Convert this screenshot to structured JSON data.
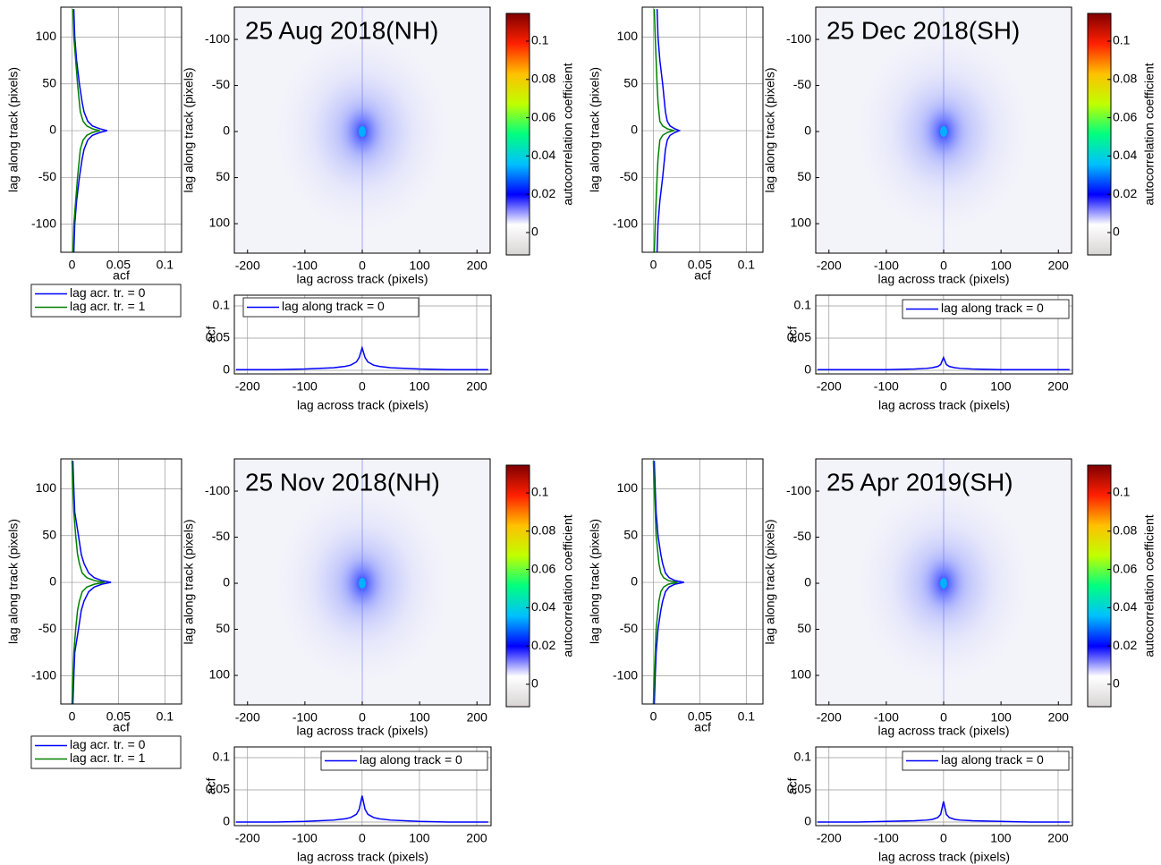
{
  "chart_data": [
    {
      "type": "line",
      "xlabel": "acf",
      "ylabel": "lag along track (pixels)",
      "xlim": [
        -0.012,
        0.118
      ],
      "xticks": [
        0,
        0.05,
        0.1
      ],
      "ylim": [
        -130,
        132
      ],
      "yticks": [
        -100,
        -50,
        0,
        50,
        100
      ],
      "grid": true,
      "legend": "below",
      "y": [
        -130,
        -100,
        -75,
        -50,
        -30,
        -20,
        -10,
        -5,
        -2,
        0,
        2,
        5,
        10,
        20,
        30,
        50,
        75,
        100,
        130
      ],
      "series": [
        {
          "name": "lag acr. tr. = 0",
          "color": "#0000ff",
          "values": [
            0.002,
            0.003,
            0.005,
            0.008,
            0.011,
            0.013,
            0.017,
            0.022,
            0.03,
            0.038,
            0.03,
            0.022,
            0.017,
            0.013,
            0.011,
            0.008,
            0.005,
            0.003,
            0.002
          ]
        },
        {
          "name": "lag acr. tr. = 1",
          "color": "#008000",
          "values": [
            0.001,
            0.002,
            0.004,
            0.006,
            0.008,
            0.009,
            0.012,
            0.016,
            0.022,
            0.03,
            0.022,
            0.016,
            0.012,
            0.009,
            0.008,
            0.006,
            0.004,
            0.002,
            0.001
          ]
        }
      ]
    },
    {
      "type": "heatmap",
      "title": "25 Aug 2018(NH)",
      "xlabel": "lag across track (pixels)",
      "ylabel": "lag along track (pixels)",
      "xlim": [
        -223,
        223
      ],
      "xticks": [
        -200,
        -100,
        0,
        100,
        200
      ],
      "ylim": [
        132,
        -135
      ],
      "yticks": [
        -100,
        -50,
        0,
        50,
        100
      ]
    },
    {
      "type": "colorbar",
      "label": "autocorrelation coefficient",
      "ylim": [
        -0.0117,
        0.1145
      ],
      "yticks": [
        0,
        0.02,
        0.04,
        0.06,
        0.08,
        0.1
      ],
      "colors": [
        "#d8d4d4",
        "#ffffff",
        "#0000ff",
        "#00c0ff",
        "#00ff80",
        "#c0ff00",
        "#ffc000",
        "#ff2000",
        "#800000"
      ]
    },
    {
      "type": "line",
      "xlabel": "lag across track (pixels)",
      "ylabel": "acf",
      "xlim": [
        -223,
        225
      ],
      "xticks": [
        -200,
        -100,
        0,
        100,
        200
      ],
      "ylim": [
        -0.0056,
        0.1167
      ],
      "yticks": [
        0,
        0.05,
        0.1
      ],
      "grid": true,
      "legend": "upper left",
      "x": [
        -220,
        -200,
        -150,
        -100,
        -50,
        -30,
        -20,
        -10,
        -5,
        0,
        5,
        10,
        20,
        30,
        50,
        100,
        150,
        200,
        220
      ],
      "series": [
        {
          "name": "lag along track = 0",
          "color": "#0000ff",
          "values": [
            0.001,
            0.001,
            0.001,
            0.002,
            0.004,
            0.006,
            0.008,
            0.013,
            0.02,
            0.035,
            0.02,
            0.013,
            0.008,
            0.006,
            0.004,
            0.002,
            0.001,
            0.001,
            0.001
          ]
        }
      ]
    },
    {
      "type": "line",
      "xlabel": "acf",
      "ylabel": "lag along track (pixels)",
      "xlim": [
        -0.012,
        0.118
      ],
      "xticks": [
        0,
        0.05,
        0.1
      ],
      "ylim": [
        -130,
        132
      ],
      "yticks": [
        -100,
        -50,
        0,
        50,
        100
      ],
      "grid": true,
      "legend": "below",
      "y": [
        -130,
        -100,
        -75,
        -50,
        -30,
        -20,
        -10,
        -5,
        -2,
        0,
        2,
        5,
        10,
        20,
        30,
        50,
        75,
        100,
        130
      ],
      "series": [
        {
          "name": "lag acr. tr. = 0",
          "color": "#0000ff",
          "values": [
            0.004,
            0.005,
            0.007,
            0.01,
            0.012,
            0.013,
            0.015,
            0.018,
            0.023,
            0.028,
            0.023,
            0.018,
            0.015,
            0.013,
            0.012,
            0.01,
            0.007,
            0.005,
            0.004
          ]
        },
        {
          "name": "lag acr. tr. = 1",
          "color": "#008000",
          "values": [
            0.001,
            0.002,
            0.003,
            0.004,
            0.005,
            0.006,
            0.007,
            0.01,
            0.015,
            0.022,
            0.015,
            0.01,
            0.007,
            0.006,
            0.005,
            0.004,
            0.003,
            0.002,
            0.001
          ]
        }
      ]
    },
    {
      "type": "heatmap",
      "title": "25 Dec 2018(SH)",
      "xlabel": "lag across track (pixels)",
      "ylabel": "lag along track (pixels)",
      "xlim": [
        -223,
        223
      ],
      "xticks": [
        -200,
        -100,
        0,
        100,
        200
      ],
      "ylim": [
        132,
        -135
      ],
      "yticks": [
        -100,
        -50,
        0,
        50,
        100
      ]
    },
    {
      "type": "colorbar",
      "label": "autocorrelation coefficient",
      "ylim": [
        -0.0117,
        0.1145
      ],
      "yticks": [
        0,
        0.02,
        0.04,
        0.06,
        0.08,
        0.1
      ],
      "colors": [
        "#d8d4d4",
        "#ffffff",
        "#0000ff",
        "#00c0ff",
        "#00ff80",
        "#c0ff00",
        "#ffc000",
        "#ff2000",
        "#800000"
      ]
    },
    {
      "type": "line",
      "xlabel": "lag across track (pixels)",
      "ylabel": "acf",
      "xlim": [
        -223,
        225
      ],
      "xticks": [
        -200,
        -100,
        0,
        100,
        200
      ],
      "ylim": [
        -0.0056,
        0.1167
      ],
      "yticks": [
        0,
        0.05,
        0.1
      ],
      "grid": true,
      "legend": "upper right",
      "x": [
        -220,
        -200,
        -150,
        -100,
        -50,
        -30,
        -20,
        -10,
        -5,
        0,
        5,
        10,
        20,
        30,
        50,
        100,
        150,
        200,
        220
      ],
      "series": [
        {
          "name": "lag along track = 0",
          "color": "#0000ff",
          "values": [
            0.001,
            0.001,
            0.001,
            0.001,
            0.002,
            0.003,
            0.004,
            0.006,
            0.009,
            0.02,
            0.009,
            0.006,
            0.004,
            0.003,
            0.002,
            0.001,
            0.001,
            0.001,
            0.001
          ]
        }
      ]
    },
    {
      "type": "line",
      "xlabel": "acf",
      "ylabel": "lag along track (pixels)",
      "xlim": [
        -0.012,
        0.118
      ],
      "xticks": [
        0,
        0.05,
        0.1
      ],
      "ylim": [
        -130,
        132
      ],
      "yticks": [
        -100,
        -50,
        0,
        50,
        100
      ],
      "grid": true,
      "legend": "below",
      "y": [
        -130,
        -100,
        -75,
        -50,
        -30,
        -20,
        -10,
        -5,
        -2,
        0,
        2,
        5,
        10,
        20,
        30,
        50,
        75,
        100,
        130
      ],
      "series": [
        {
          "name": "lag acr. tr. = 0",
          "color": "#0000ff",
          "values": [
            0.001,
            0.002,
            0.003,
            0.007,
            0.01,
            0.013,
            0.018,
            0.024,
            0.032,
            0.042,
            0.032,
            0.024,
            0.018,
            0.013,
            0.01,
            0.007,
            0.003,
            0.002,
            0.001
          ]
        },
        {
          "name": "lag acr. tr. = 1",
          "color": "#008000",
          "values": [
            0,
            0.001,
            0.002,
            0.004,
            0.006,
            0.008,
            0.011,
            0.016,
            0.024,
            0.035,
            0.024,
            0.016,
            0.011,
            0.008,
            0.006,
            0.004,
            0.002,
            0.001,
            0
          ]
        }
      ]
    },
    {
      "type": "heatmap",
      "title": "25 Nov 2018(NH)",
      "xlabel": "lag across track (pixels)",
      "ylabel": "lag along track (pixels)",
      "xlim": [
        -223,
        223
      ],
      "xticks": [
        -200,
        -100,
        0,
        100,
        200
      ],
      "ylim": [
        132,
        -135
      ],
      "yticks": [
        -100,
        -50,
        0,
        50,
        100
      ]
    },
    {
      "type": "colorbar",
      "label": "autocorrelation coefficient",
      "ylim": [
        -0.0117,
        0.1145
      ],
      "yticks": [
        0,
        0.02,
        0.04,
        0.06,
        0.08,
        0.1
      ],
      "colors": [
        "#d8d4d4",
        "#ffffff",
        "#0000ff",
        "#00c0ff",
        "#00ff80",
        "#c0ff00",
        "#ffc000",
        "#ff2000",
        "#800000"
      ]
    },
    {
      "type": "line",
      "xlabel": "lag across track (pixels)",
      "ylabel": "acf",
      "xlim": [
        -223,
        225
      ],
      "xticks": [
        -200,
        -100,
        0,
        100,
        200
      ],
      "ylim": [
        -0.0056,
        0.1167
      ],
      "yticks": [
        0,
        0.05,
        0.1
      ],
      "grid": true,
      "legend": "upper right",
      "x": [
        -220,
        -200,
        -150,
        -100,
        -50,
        -30,
        -20,
        -10,
        -5,
        0,
        5,
        10,
        20,
        30,
        50,
        100,
        150,
        200,
        220
      ],
      "series": [
        {
          "name": "lag along track = 0",
          "color": "#0000ff",
          "values": [
            0,
            0,
            0,
            0.001,
            0.003,
            0.005,
            0.007,
            0.012,
            0.02,
            0.041,
            0.02,
            0.012,
            0.007,
            0.005,
            0.003,
            0.001,
            0,
            0,
            0
          ]
        }
      ]
    },
    {
      "type": "line",
      "xlabel": "acf",
      "ylabel": "lag along track (pixels)",
      "xlim": [
        -0.012,
        0.118
      ],
      "xticks": [
        0,
        0.05,
        0.1
      ],
      "ylim": [
        -130,
        132
      ],
      "yticks": [
        -100,
        -50,
        0,
        50,
        100
      ],
      "grid": true,
      "legend": "below",
      "y": [
        -130,
        -100,
        -75,
        -50,
        -30,
        -20,
        -10,
        -5,
        -2,
        0,
        2,
        5,
        10,
        20,
        30,
        50,
        75,
        100,
        130
      ],
      "series": [
        {
          "name": "lag acr. tr. = 0",
          "color": "#0000ff",
          "values": [
            0.001,
            0.002,
            0.003,
            0.005,
            0.008,
            0.01,
            0.013,
            0.017,
            0.023,
            0.033,
            0.023,
            0.017,
            0.013,
            0.01,
            0.008,
            0.005,
            0.003,
            0.002,
            0.001
          ]
        },
        {
          "name": "lag acr. tr. = 1",
          "color": "#008000",
          "values": [
            0,
            0.001,
            0.002,
            0.003,
            0.005,
            0.006,
            0.008,
            0.011,
            0.016,
            0.026,
            0.016,
            0.011,
            0.008,
            0.006,
            0.005,
            0.003,
            0.002,
            0.001,
            0
          ]
        }
      ]
    },
    {
      "type": "heatmap",
      "title": "25 Apr 2019(SH)",
      "xlabel": "lag across track (pixels)",
      "ylabel": "lag along track (pixels)",
      "xlim": [
        -223,
        223
      ],
      "xticks": [
        -200,
        -100,
        0,
        100,
        200
      ],
      "ylim": [
        132,
        -135
      ],
      "yticks": [
        -100,
        -50,
        0,
        50,
        100
      ]
    },
    {
      "type": "colorbar",
      "label": "autocorrelation coefficient",
      "ylim": [
        -0.0117,
        0.1145
      ],
      "yticks": [
        0,
        0.02,
        0.04,
        0.06,
        0.08,
        0.1
      ],
      "colors": [
        "#d8d4d4",
        "#ffffff",
        "#0000ff",
        "#00c0ff",
        "#00ff80",
        "#c0ff00",
        "#ffc000",
        "#ff2000",
        "#800000"
      ]
    },
    {
      "type": "line",
      "xlabel": "lag across track (pixels)",
      "ylabel": "acf",
      "xlim": [
        -223,
        225
      ],
      "xticks": [
        -200,
        -100,
        0,
        100,
        200
      ],
      "ylim": [
        -0.0056,
        0.1167
      ],
      "yticks": [
        0,
        0.05,
        0.1
      ],
      "grid": true,
      "legend": "upper right",
      "x": [
        -220,
        -200,
        -150,
        -100,
        -50,
        -30,
        -20,
        -10,
        -5,
        0,
        5,
        10,
        20,
        30,
        50,
        100,
        150,
        200,
        220
      ],
      "series": [
        {
          "name": "lag along track = 0",
          "color": "#0000ff",
          "values": [
            0,
            0,
            0,
            0.001,
            0.002,
            0.003,
            0.004,
            0.007,
            0.012,
            0.032,
            0.012,
            0.007,
            0.004,
            0.003,
            0.002,
            0.001,
            0,
            0,
            0
          ]
        }
      ]
    }
  ]
}
